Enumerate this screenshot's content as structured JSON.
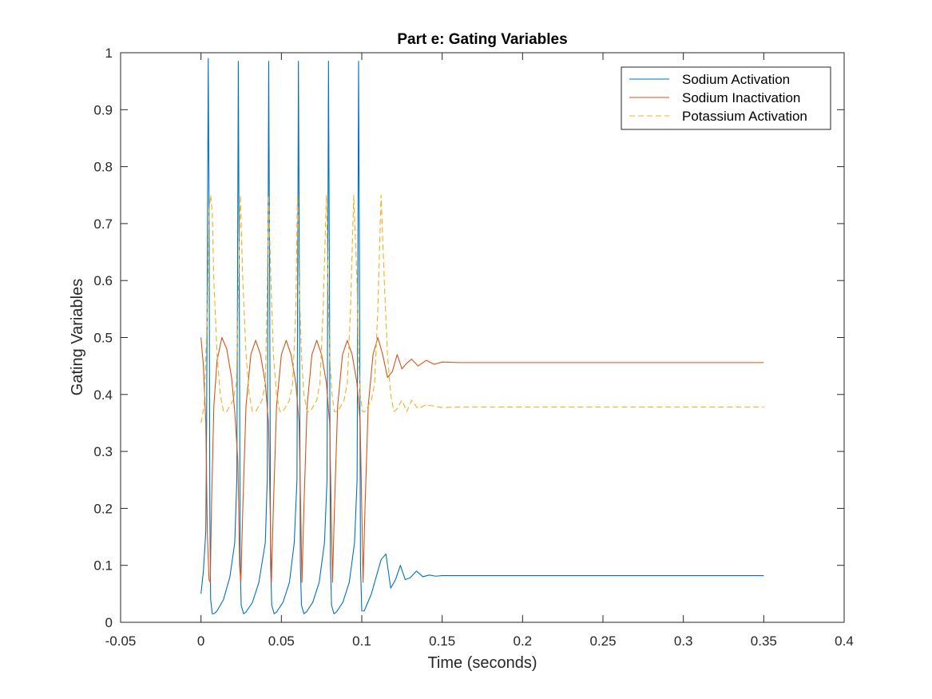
{
  "chart_data": {
    "type": "line",
    "title": "Part e: Gating Variables",
    "xlabel": "Time (seconds)",
    "ylabel": "Gating Variables",
    "xlim": [
      -0.05,
      0.4
    ],
    "ylim": [
      0,
      1
    ],
    "xticks": [
      -0.05,
      0,
      0.05,
      0.1,
      0.15,
      0.2,
      0.25,
      0.3,
      0.35,
      0.4
    ],
    "xtick_labels": [
      "-0.05",
      "0",
      "0.05",
      "0.1",
      "0.15",
      "0.2",
      "0.25",
      "0.3",
      "0.35",
      "0.4"
    ],
    "yticks": [
      0,
      0.1,
      0.2,
      0.3,
      0.4,
      0.5,
      0.6,
      0.7,
      0.8,
      0.9,
      1
    ],
    "ytick_labels": [
      "0",
      "0.1",
      "0.2",
      "0.3",
      "0.4",
      "0.5",
      "0.6",
      "0.7",
      "0.8",
      "0.9",
      "1"
    ],
    "grid": false,
    "legend_position": "top-right",
    "series": [
      {
        "name": "Sodium Activation",
        "color": "#0072BD",
        "dash": "solid",
        "x": [
          0,
          0.0015,
          0.003,
          0.0035,
          0.0045,
          0.005,
          0.0055,
          0.006,
          0.007,
          0.008,
          0.01,
          0.014,
          0.018,
          0.021,
          0.0223,
          0.0232,
          0.0238,
          0.0244,
          0.025,
          0.0265,
          0.028,
          0.032,
          0.036,
          0.04,
          0.0412,
          0.0421,
          0.0427,
          0.0433,
          0.044,
          0.0455,
          0.047,
          0.051,
          0.055,
          0.058,
          0.0597,
          0.0606,
          0.0612,
          0.0618,
          0.0625,
          0.064,
          0.0655,
          0.0695,
          0.0735,
          0.0768,
          0.0784,
          0.0793,
          0.0799,
          0.0805,
          0.0812,
          0.0827,
          0.0842,
          0.0882,
          0.0922,
          0.0955,
          0.0971,
          0.098,
          0.0986,
          0.0992,
          0.1,
          0.1015,
          0.103,
          0.106,
          0.109,
          0.112,
          0.115,
          0.118,
          0.121,
          0.124,
          0.127,
          0.13,
          0.134,
          0.138,
          0.142,
          0.146,
          0.15,
          0.155,
          0.16,
          0.17,
          0.18,
          0.2,
          0.25,
          0.3,
          0.35
        ],
        "y": [
          0.05,
          0.09,
          0.16,
          0.35,
          0.99,
          0.75,
          0.2,
          0.04,
          0.015,
          0.015,
          0.02,
          0.04,
          0.08,
          0.14,
          0.25,
          0.985,
          0.6,
          0.1,
          0.03,
          0.015,
          0.018,
          0.035,
          0.07,
          0.14,
          0.25,
          0.985,
          0.6,
          0.1,
          0.03,
          0.015,
          0.018,
          0.035,
          0.07,
          0.14,
          0.25,
          0.985,
          0.6,
          0.1,
          0.03,
          0.015,
          0.018,
          0.035,
          0.07,
          0.14,
          0.25,
          0.985,
          0.6,
          0.1,
          0.03,
          0.015,
          0.018,
          0.035,
          0.07,
          0.14,
          0.25,
          0.985,
          0.6,
          0.1,
          0.02,
          0.02,
          0.03,
          0.05,
          0.08,
          0.11,
          0.12,
          0.06,
          0.075,
          0.1,
          0.075,
          0.078,
          0.09,
          0.08,
          0.083,
          0.081,
          0.082,
          0.082,
          0.082,
          0.082,
          0.082,
          0.082,
          0.082,
          0.082,
          0.082
        ]
      },
      {
        "name": "Sodium Inactivation",
        "color": "#D95319",
        "dash": "solid",
        "x": [
          0,
          0.0015,
          0.003,
          0.004,
          0.005,
          0.0058,
          0.0065,
          0.008,
          0.01,
          0.013,
          0.016,
          0.019,
          0.021,
          0.023,
          0.024,
          0.0248,
          0.026,
          0.028,
          0.031,
          0.034,
          0.037,
          0.04,
          0.042,
          0.043,
          0.0438,
          0.045,
          0.047,
          0.05,
          0.053,
          0.056,
          0.059,
          0.061,
          0.062,
          0.0628,
          0.064,
          0.066,
          0.069,
          0.072,
          0.075,
          0.078,
          0.08,
          0.081,
          0.0818,
          0.083,
          0.085,
          0.088,
          0.091,
          0.094,
          0.097,
          0.099,
          0.1,
          0.1008,
          0.102,
          0.104,
          0.107,
          0.11,
          0.113,
          0.116,
          0.119,
          0.122,
          0.125,
          0.128,
          0.131,
          0.135,
          0.14,
          0.145,
          0.15,
          0.16,
          0.17,
          0.2,
          0.25,
          0.3,
          0.35
        ],
        "y": [
          0.5,
          0.45,
          0.35,
          0.15,
          0.075,
          0.07,
          0.2,
          0.38,
          0.46,
          0.5,
          0.48,
          0.43,
          0.37,
          0.28,
          0.1,
          0.07,
          0.2,
          0.38,
          0.47,
          0.495,
          0.47,
          0.42,
          0.35,
          0.2,
          0.07,
          0.2,
          0.38,
          0.47,
          0.495,
          0.47,
          0.42,
          0.35,
          0.2,
          0.07,
          0.2,
          0.38,
          0.47,
          0.495,
          0.47,
          0.42,
          0.35,
          0.2,
          0.07,
          0.2,
          0.38,
          0.47,
          0.495,
          0.47,
          0.42,
          0.35,
          0.2,
          0.07,
          0.2,
          0.38,
          0.47,
          0.5,
          0.47,
          0.43,
          0.44,
          0.47,
          0.445,
          0.455,
          0.462,
          0.45,
          0.46,
          0.453,
          0.457,
          0.456,
          0.456,
          0.456,
          0.456,
          0.456,
          0.456
        ]
      },
      {
        "name": "Potassium Activation",
        "color": "#EDB120",
        "dash": "dashed",
        "x": [
          0,
          0.002,
          0.004,
          0.005,
          0.006,
          0.007,
          0.008,
          0.01,
          0.012,
          0.014,
          0.016,
          0.018,
          0.02,
          0.022,
          0.023,
          0.0245,
          0.026,
          0.028,
          0.03,
          0.032,
          0.034,
          0.036,
          0.038,
          0.04,
          0.041,
          0.042,
          0.0435,
          0.045,
          0.047,
          0.049,
          0.051,
          0.053,
          0.055,
          0.057,
          0.059,
          0.06,
          0.061,
          0.0625,
          0.064,
          0.066,
          0.068,
          0.07,
          0.072,
          0.074,
          0.076,
          0.078,
          0.079,
          0.08,
          0.0815,
          0.083,
          0.085,
          0.087,
          0.089,
          0.091,
          0.093,
          0.095,
          0.097,
          0.098,
          0.099,
          0.1005,
          0.102,
          0.104,
          0.106,
          0.108,
          0.11,
          0.112,
          0.114,
          0.116,
          0.118,
          0.12,
          0.122,
          0.125,
          0.128,
          0.131,
          0.135,
          0.14,
          0.15,
          0.16,
          0.2,
          0.25,
          0.3,
          0.35
        ],
        "y": [
          0.35,
          0.38,
          0.55,
          0.72,
          0.75,
          0.72,
          0.6,
          0.47,
          0.4,
          0.37,
          0.37,
          0.38,
          0.39,
          0.42,
          0.55,
          0.75,
          0.6,
          0.47,
          0.4,
          0.37,
          0.37,
          0.38,
          0.39,
          0.42,
          0.55,
          0.75,
          0.6,
          0.47,
          0.4,
          0.37,
          0.37,
          0.38,
          0.39,
          0.42,
          0.55,
          0.75,
          0.6,
          0.47,
          0.4,
          0.37,
          0.37,
          0.38,
          0.39,
          0.42,
          0.55,
          0.75,
          0.6,
          0.47,
          0.4,
          0.37,
          0.37,
          0.38,
          0.39,
          0.42,
          0.55,
          0.75,
          0.6,
          0.47,
          0.4,
          0.37,
          0.37,
          0.38,
          0.39,
          0.42,
          0.55,
          0.75,
          0.6,
          0.47,
          0.4,
          0.37,
          0.375,
          0.39,
          0.37,
          0.39,
          0.375,
          0.382,
          0.377,
          0.378,
          0.378,
          0.378,
          0.378,
          0.378
        ]
      }
    ]
  }
}
